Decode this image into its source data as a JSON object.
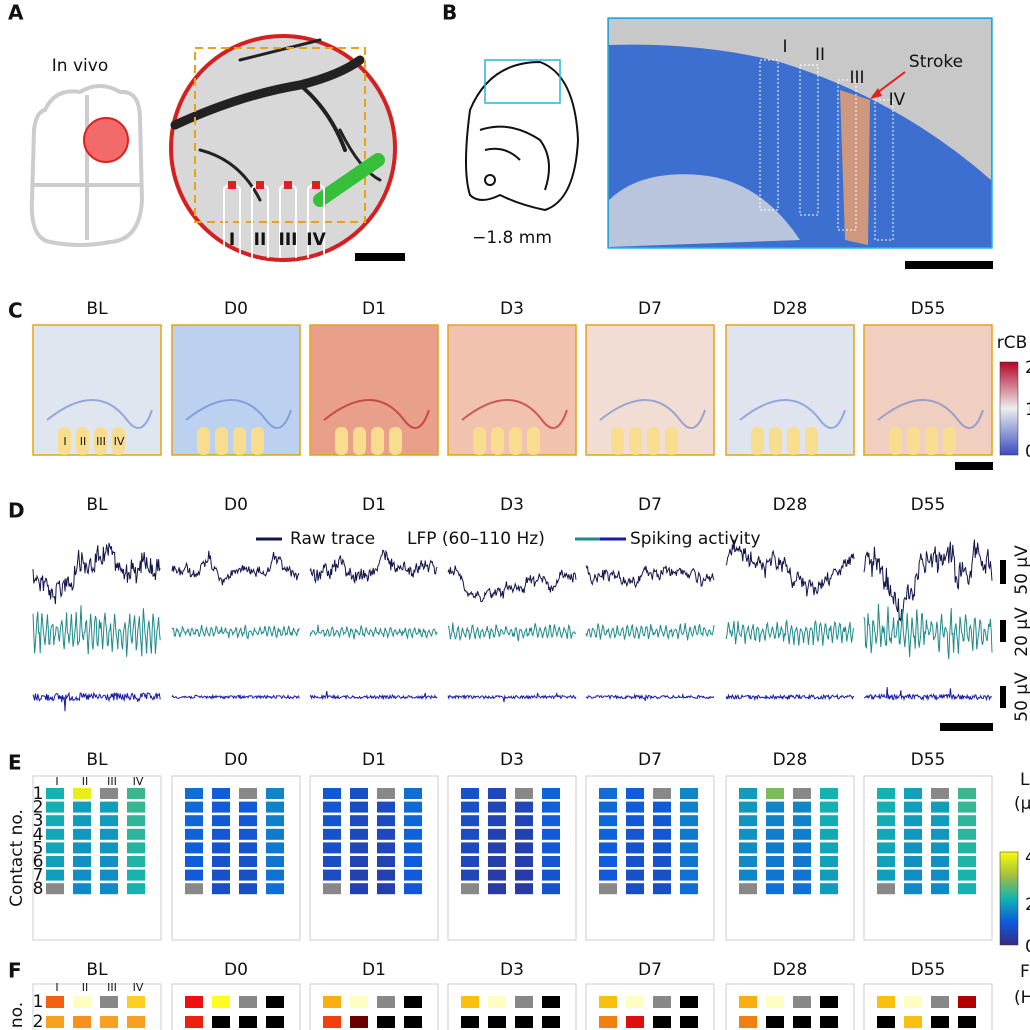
{
  "panel_a": {
    "label": "A",
    "caption": "In vivo",
    "probes": [
      "I",
      "II",
      "III",
      "IV"
    ]
  },
  "panel_b": {
    "label": "B",
    "section": "−1.8 mm",
    "probes": [
      "I",
      "II",
      "III",
      "IV"
    ],
    "annotation": "Stroke"
  },
  "panel_c": {
    "label": "C",
    "timepoints": [
      "BL",
      "D0",
      "D1",
      "D3",
      "D7",
      "D28",
      "D55"
    ],
    "probes": [
      "I",
      "II",
      "III",
      "IV"
    ],
    "colorbar": {
      "title": "rCB",
      "ticks": [
        "2",
        "1",
        "0"
      ]
    }
  },
  "panel_d": {
    "label": "D",
    "timepoints": [
      "BL",
      "D0",
      "D1",
      "D3",
      "D7",
      "D28",
      "D55"
    ],
    "legend": [
      "Raw trace",
      "LFP (60–110 Hz)",
      "Spiking activity"
    ],
    "scale_bars": [
      "50 μV",
      "20 μV",
      "50 μV"
    ]
  },
  "panel_e": {
    "label": "E",
    "timepoints": [
      "BL",
      "D0",
      "D1",
      "D3",
      "D7",
      "D28",
      "D55"
    ],
    "y_label": "Contact no.",
    "contacts": [
      "1",
      "2",
      "3",
      "4",
      "5",
      "6",
      "7",
      "8"
    ],
    "probes": [
      "I",
      "II",
      "III",
      "IV"
    ],
    "colorbar": {
      "title": "LFP",
      "unit": "(μV",
      "ticks": [
        "4",
        "2",
        "0"
      ]
    }
  },
  "panel_f": {
    "label": "F",
    "timepoints": [
      "BL",
      "D0",
      "D1",
      "D3",
      "D7",
      "D28",
      "D55"
    ],
    "y_label": "no.",
    "contacts": [
      "1",
      "2"
    ],
    "probes": [
      "I",
      "II",
      "III",
      "IV"
    ],
    "colorbar": {
      "title": "FR",
      "unit": "(Hz)"
    }
  }
}
